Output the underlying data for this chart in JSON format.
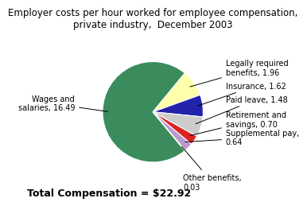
{
  "title": "Employer costs per hour worked for employee compensation,\nprivate industry,  December 2003",
  "total_label": "Total Compensation = $22.92",
  "slices": [
    {
      "label": "Wages and\nsalaries, 16.49",
      "value": 16.49,
      "color": "#3A8C5C"
    },
    {
      "label": "Legally required\nbenefits, 1.96",
      "value": 1.96,
      "color": "#FFFFAA"
    },
    {
      "label": "Insurance, 1.62",
      "value": 1.62,
      "color": "#2222AA"
    },
    {
      "label": "Paid leave, 1.48",
      "value": 1.48,
      "color": "#CCCCCC"
    },
    {
      "label": "Retirement and\nsavings, 0.70",
      "value": 0.7,
      "color": "#DD2222"
    },
    {
      "label": "Supplemental pay,\n0.64",
      "value": 0.64,
      "color": "#BB99CC"
    },
    {
      "label": "Other benefits,\n0.03",
      "value": 0.03,
      "color": "#6B1A1A"
    }
  ],
  "background_color": "#FFFFFF",
  "title_fontsize": 8.5,
  "label_fontsize": 7.0,
  "total_fontsize": 9,
  "edge_color": "#FFFFFF",
  "edge_lw": 0.8
}
